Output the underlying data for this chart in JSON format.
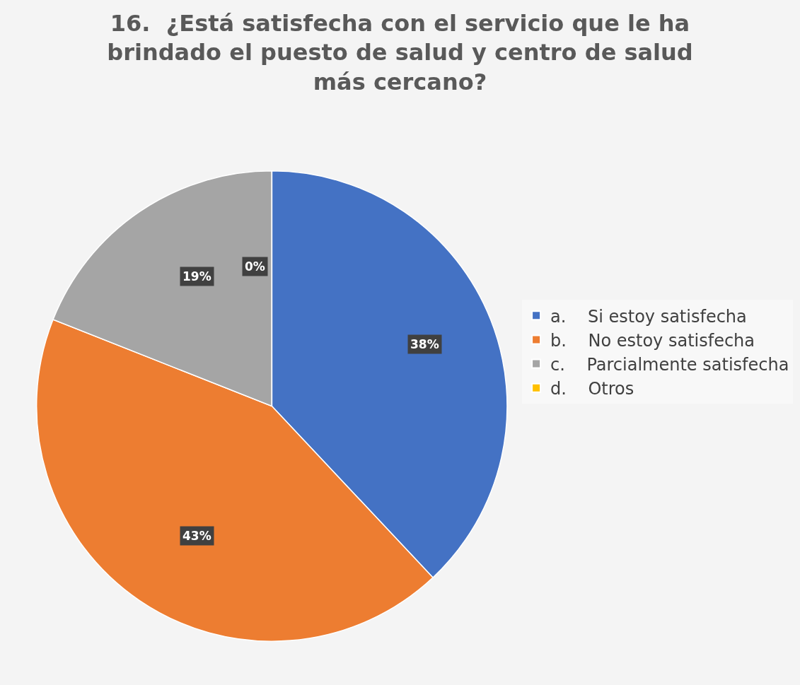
{
  "chart_data": {
    "type": "pie",
    "title": "16.  ¿Está satisfecha con el servicio que le ha brindado el puesto de salud y centro de salud más cercano?",
    "categories": [
      "a.    Si estoy satisfecha",
      "b.    No estoy satisfecha",
      "c.    Parcialmente satisfecha",
      "d.    Otros"
    ],
    "values": [
      38,
      43,
      19,
      0
    ],
    "colors": [
      "#4472c4",
      "#ed7d31",
      "#a5a5a5",
      "#ffc000"
    ],
    "value_labels": [
      "38%",
      "43%",
      "19%",
      "0%"
    ],
    "legend": "right"
  }
}
